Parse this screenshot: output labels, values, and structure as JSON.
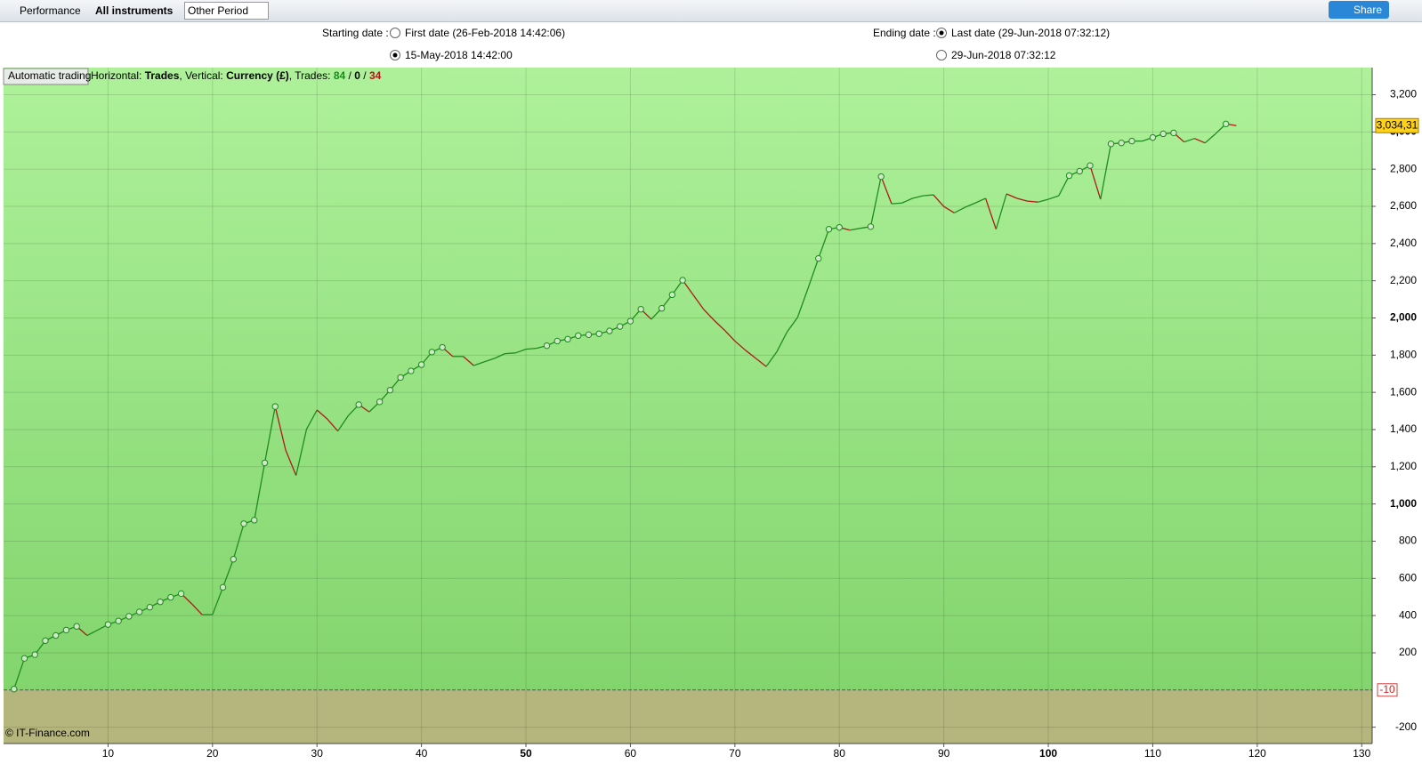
{
  "toolbar": {
    "title": "Performance",
    "instruments": "All instruments",
    "period": "Other Period",
    "share": "Share"
  },
  "dates": {
    "start_label": "Starting date :",
    "first_date": "First date (26-Feb-2018 14:42:06)",
    "start_custom": "15-May-2018 14:42:00",
    "end_label": "Ending date :",
    "last_date": "Last date (29-Jun-2018 07:32:12)",
    "end_custom": "29-Jun-2018 07:32:12"
  },
  "info": {
    "tab": "Automatic trading",
    "horizontal": "Horizontal:",
    "horizontal_value": "Trades",
    "vertical": ", Vertical:",
    "vertical_value": "Currency (£)",
    "trades": ", Trades:",
    "wins": "84",
    "sep1": "/",
    "neutral": "0",
    "sep2": "/",
    "losses": "34"
  },
  "chart_data": {
    "type": "line",
    "copyright": "© IT-Finance.com",
    "last_value_label": "3,034,31",
    "zero_label": "-10",
    "x": [
      1,
      2,
      3,
      4,
      5,
      6,
      7,
      8,
      9,
      10,
      11,
      12,
      13,
      14,
      15,
      16,
      17,
      18,
      19,
      20,
      21,
      22,
      23,
      24,
      25,
      26,
      27,
      28,
      29,
      30,
      31,
      32,
      33,
      34,
      35,
      36,
      37,
      38,
      39,
      40,
      41,
      42,
      43,
      44,
      45,
      46,
      47,
      48,
      49,
      50,
      51,
      52,
      53,
      54,
      55,
      56,
      57,
      58,
      59,
      60,
      61,
      62,
      63,
      64,
      65,
      66,
      67,
      68,
      69,
      70,
      71,
      72,
      73,
      74,
      75,
      76,
      77,
      78,
      79,
      80,
      81,
      82,
      83,
      84,
      85,
      86,
      87,
      88,
      89,
      90,
      91,
      92,
      93,
      94,
      95,
      96,
      97,
      98,
      99,
      100,
      101,
      102,
      103,
      104,
      105,
      106,
      107,
      108,
      109,
      110,
      111,
      112,
      113,
      114,
      115,
      116,
      117,
      118
    ],
    "values": [
      5,
      170,
      190,
      265,
      293,
      322,
      342,
      293,
      322,
      352,
      371,
      396,
      420,
      445,
      474,
      498,
      518,
      464,
      405,
      405,
      552,
      703,
      894,
      913,
      1221,
      1524,
      1290,
      1153,
      1402,
      1505,
      1456,
      1392,
      1475,
      1534,
      1495,
      1549,
      1612,
      1680,
      1715,
      1749,
      1817,
      1842,
      1793,
      1793,
      1744,
      1764,
      1783,
      1808,
      1812,
      1832,
      1837,
      1851,
      1876,
      1886,
      1905,
      1910,
      1915,
      1930,
      1954,
      1983,
      2047,
      1993,
      2052,
      2125,
      2203,
      2125,
      2047,
      1988,
      1935,
      1876,
      1827,
      1783,
      1739,
      1817,
      1925,
      2003,
      2159,
      2320,
      2477,
      2487,
      2472,
      2482,
      2491,
      2760,
      2614,
      2618,
      2643,
      2657,
      2662,
      2599,
      2565,
      2594,
      2618,
      2643,
      2477,
      2667,
      2643,
      2628,
      2623,
      2638,
      2657,
      2765,
      2789,
      2819,
      2638,
      2936,
      2941,
      2951,
      2951,
      2970,
      2990,
      2995,
      2946,
      2965,
      2941,
      2990,
      3043,
      3034
    ],
    "color": "#1e8c1e",
    "loss_color": "#b01818",
    "grid": true,
    "xlim": [
      0,
      131
    ],
    "xticks": [
      10,
      20,
      30,
      40,
      50,
      60,
      70,
      80,
      90,
      100,
      110,
      120,
      130
    ],
    "ylim": [
      -288,
      3346
    ],
    "yticks": [
      -200,
      200,
      400,
      600,
      800,
      {
        "value": 1000,
        "label": "1,000"
      },
      {
        "value": 1200,
        "label": "1,200"
      },
      {
        "value": 1400,
        "label": "1,400"
      },
      {
        "value": 1600,
        "label": "1,600"
      },
      {
        "value": 1800,
        "label": "1,800"
      },
      {
        "value": 2000,
        "label": "2,000"
      },
      {
        "value": 2200,
        "label": "2,200"
      },
      {
        "value": 2400,
        "label": "2,400"
      },
      {
        "value": 2600,
        "label": "2,600"
      },
      {
        "value": 2800,
        "label": "2,800"
      },
      {
        "value": 3000,
        "label": "3,000"
      },
      {
        "value": 3200,
        "label": "3,200"
      }
    ]
  }
}
